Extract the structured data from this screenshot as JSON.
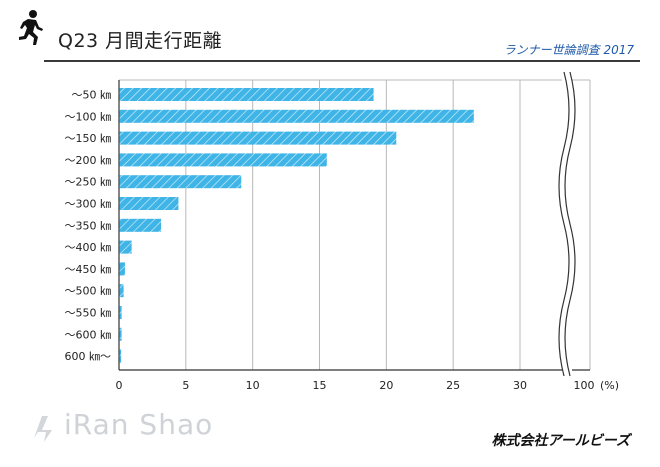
{
  "header": {
    "title": "Q23 月間走行距離",
    "subtitle": "ランナー世論調査 2017"
  },
  "footer": {
    "brand": "株式会社アールビーズ",
    "watermark": "iRan Shao"
  },
  "colors": {
    "bar_fill": "#3fb4e6",
    "bar_hatch": "#ffffff",
    "grid": "#b8b8b8",
    "axis": "#333333",
    "header_rule": "#3a3a3a",
    "subtitle": "#1e5aa8"
  },
  "chart_data": {
    "type": "bar",
    "orientation": "horizontal",
    "title": "Q23 月間走行距離",
    "xlabel": "(%)",
    "ylabel": "",
    "categories": [
      "～50 ㎞",
      "～100 ㎞",
      "～150 ㎞",
      "～200 ㎞",
      "～250 ㎞",
      "～300 ㎞",
      "～350 ㎞",
      "～400 ㎞",
      "～450 ㎞",
      "～500 ㎞",
      "～550 ㎞",
      "～600 ㎞",
      "600 ㎞～"
    ],
    "values": [
      19.0,
      26.5,
      20.7,
      15.5,
      9.1,
      4.4,
      3.1,
      0.9,
      0.4,
      0.3,
      0.15,
      0.15,
      0.1
    ],
    "xlim": [
      0,
      30
    ],
    "xticks": [
      0,
      5,
      10,
      15,
      20,
      25,
      30
    ],
    "axis_break_label": "100",
    "grid": true
  }
}
